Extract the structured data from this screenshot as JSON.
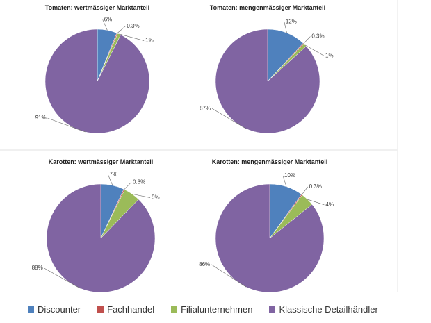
{
  "chart_data": [
    {
      "type": "pie",
      "title": "Tomaten: wertmässiger Marktanteil",
      "categories": [
        "Discounter",
        "Fachhandel",
        "Filialunternehmen",
        "Klassische Detailhändler"
      ],
      "colors": [
        "#4f81bd",
        "#c0504d",
        "#9bbb59",
        "#8064a2"
      ],
      "values": [
        6,
        0.3,
        1,
        91
      ],
      "value_labels": [
        "6%",
        "0.3%",
        "1%",
        "91%"
      ]
    },
    {
      "type": "pie",
      "title": "Tomaten: mengenmässiger Marktanteil",
      "categories": [
        "Discounter",
        "Fachhandel",
        "Filialunternehmen",
        "Klassische Detailhändler"
      ],
      "colors": [
        "#4f81bd",
        "#c0504d",
        "#9bbb59",
        "#8064a2"
      ],
      "values": [
        12,
        0.3,
        1,
        87
      ],
      "value_labels": [
        "12%",
        "0.3%",
        "1%",
        "87%"
      ]
    },
    {
      "type": "pie",
      "title": "Karotten: wertmässiger Marktanteil",
      "categories": [
        "Discounter",
        "Fachhandel",
        "Filialunternehmen",
        "Klassische Detailhändler"
      ],
      "colors": [
        "#4f81bd",
        "#c0504d",
        "#9bbb59",
        "#8064a2"
      ],
      "values": [
        7,
        0.3,
        5,
        88
      ],
      "value_labels": [
        "7%",
        "0.3%",
        "5%",
        "88%"
      ]
    },
    {
      "type": "pie",
      "title": "Karotten: mengenmässiger Marktanteil",
      "categories": [
        "Discounter",
        "Fachhandel",
        "Filialunternehmen",
        "Klassische Detailhändler"
      ],
      "colors": [
        "#4f81bd",
        "#c0504d",
        "#9bbb59",
        "#8064a2"
      ],
      "values": [
        10,
        0.3,
        4,
        86
      ],
      "value_labels": [
        "10%",
        "0.3%",
        "4%",
        "86%"
      ]
    }
  ]
}
